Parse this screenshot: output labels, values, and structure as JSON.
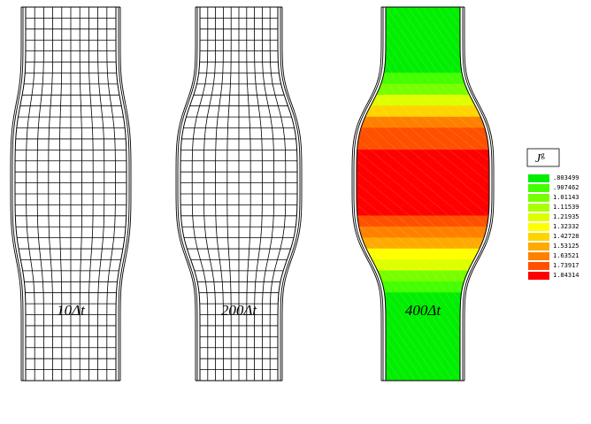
{
  "panels": [
    {
      "label": "10Δt"
    },
    {
      "label": "200Δt"
    },
    {
      "label": "400Δt"
    }
  ],
  "legend": {
    "title": "J",
    "title_sup": "g",
    "entries": [
      {
        "label": ".803499",
        "color": "#00ee00"
      },
      {
        "label": ".907462",
        "color": "#44ff00"
      },
      {
        "label": "1.01143",
        "color": "#77ff00"
      },
      {
        "label": "1.11539",
        "color": "#aaff00"
      },
      {
        "label": "1.21935",
        "color": "#ddff00"
      },
      {
        "label": "1.32332",
        "color": "#ffff00"
      },
      {
        "label": "1.42728",
        "color": "#ffd400"
      },
      {
        "label": "1.53125",
        "color": "#ffaa00"
      },
      {
        "label": "1.63521",
        "color": "#ff8000"
      },
      {
        "label": "1.73917",
        "color": "#ff5000"
      },
      {
        "label": "1.84314",
        "color": "#ff0000"
      }
    ]
  }
}
